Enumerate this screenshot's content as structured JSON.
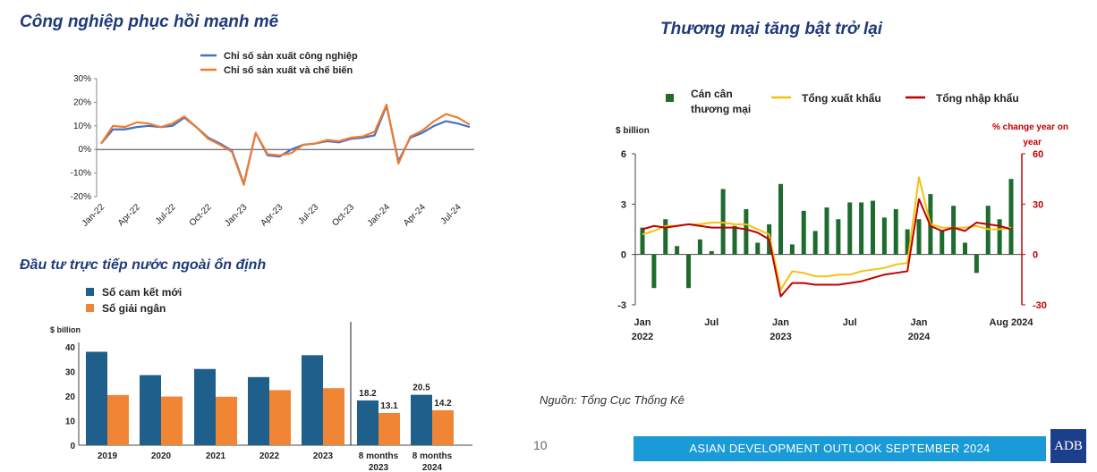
{
  "titles": {
    "industry": "Công nghiệp phục hồi mạnh mẽ",
    "fdi": "Đầu tư trực tiếp nước ngoài ổn định",
    "trade": "Thương mại tăng bật trở lại"
  },
  "footer": {
    "source": "Nguồn: Tổng Cục Thống Kê",
    "page_number": "10",
    "banner": "ASIAN DEVELOPMENT OUTLOOK SEPTEMBER 2024",
    "logo": "ADB"
  },
  "colors": {
    "blue_line": "#4472c4",
    "orange_line": "#ed7d31",
    "fdi_blue": "#1f5f8b",
    "fdi_orange": "#f08536",
    "trade_green": "#1e6b2e",
    "trade_yellow": "#f4c20d",
    "trade_red": "#c00000",
    "title": "#1f3a7a",
    "banner": "#1a9ad6"
  },
  "chart_data": [
    {
      "type": "line",
      "legend": [
        "Chỉ số sản xuất công nghiệp",
        "Chỉ số sản xuất và chế biến"
      ],
      "x_tick_labels": [
        "Jan-22",
        "Apr-22",
        "Jul-22",
        "Oct-22",
        "Jan-23",
        "Apr-23",
        "Jul-23",
        "Oct-23",
        "Jan-24",
        "Apr-24",
        "Jul-24"
      ],
      "y_tick_labels": [
        "30%",
        "20%",
        "10%",
        "0%",
        "-10%",
        "-20%"
      ],
      "ylim": [
        -20,
        30
      ],
      "series": [
        {
          "name": "Chỉ số sản xuất công nghiệp",
          "values": [
            2.5,
            8.5,
            8.5,
            9.5,
            10,
            9.5,
            10,
            13.5,
            9.5,
            5,
            2.5,
            -0.5,
            -14.5,
            7,
            -2.5,
            -3,
            0,
            2,
            2.5,
            3.5,
            3,
            4.5,
            5,
            6,
            18.5,
            -5,
            5,
            7,
            10,
            12,
            11,
            9.5
          ]
        },
        {
          "name": "Chỉ số sản xuất và chế biến",
          "values": [
            2.5,
            10,
            9.5,
            11.5,
            11,
            9.5,
            11,
            14,
            9.5,
            4.5,
            2,
            -1,
            -15,
            7,
            -2,
            -2.5,
            -1.5,
            2,
            2.5,
            4,
            3.5,
            5,
            5.5,
            7.5,
            19,
            -6,
            5.5,
            8,
            12,
            15,
            13.5,
            10.5
          ]
        }
      ]
    },
    {
      "type": "bar",
      "legend": [
        "Số cam kết mới",
        "Số giải ngân"
      ],
      "unit": "$ billion",
      "y_tick_labels": [
        "0",
        "10",
        "20",
        "30",
        "40"
      ],
      "ylim": [
        0,
        40
      ],
      "categories": [
        [
          "2019"
        ],
        [
          "2020"
        ],
        [
          "2021"
        ],
        [
          "2022"
        ],
        [
          "2023"
        ],
        [
          "8 months",
          "2023"
        ],
        [
          "8 months",
          "2024"
        ]
      ],
      "series": [
        {
          "name": "Số cam kết mới",
          "values": [
            38,
            28.5,
            31,
            27.7,
            36.6,
            18.2,
            20.5
          ],
          "labels": [
            "",
            "",
            "",
            "",
            "",
            "18.2",
            "20.5"
          ]
        },
        {
          "name": "Số giải ngân",
          "values": [
            20.4,
            19.8,
            19.7,
            22.4,
            23.2,
            13.1,
            14.2
          ],
          "labels": [
            "",
            "",
            "",
            "",
            "",
            "13.1",
            "14.2"
          ]
        }
      ]
    },
    {
      "type": "bar",
      "legend": [
        "Cán cân thương mại",
        "Tổng xuất khẩu",
        "Tổng nhập khẩu"
      ],
      "left_unit": "$ billion",
      "right_unit": "% change year on year",
      "left_tick_labels": [
        "6",
        "3",
        "0",
        "-3"
      ],
      "right_tick_labels": [
        "60",
        "30",
        "0",
        "-30"
      ],
      "ylim_left": [
        -3,
        6
      ],
      "ylim_right": [
        -30,
        60
      ],
      "x_tick_labels": [
        [
          "Jan",
          "2022"
        ],
        [
          "Jul",
          ""
        ],
        [
          "Jan",
          "2023"
        ],
        [
          "Jul",
          ""
        ],
        [
          "Jan",
          "2024"
        ],
        [
          "Aug 2024",
          ""
        ]
      ],
      "series": [
        {
          "name": "Cán cân thương mại",
          "values": [
            1.6,
            -2,
            2.1,
            0.5,
            -2,
            0.9,
            0.2,
            3.9,
            1.7,
            2.7,
            0.7,
            1.8,
            4.2,
            0.6,
            2.6,
            1.4,
            2.8,
            2.1,
            3.1,
            3.1,
            3.2,
            2.2,
            2.7,
            1.5,
            2.1,
            3.6,
            1.4,
            2.9,
            0.7,
            -1.1,
            2.9,
            2.1,
            4.5
          ]
        },
        {
          "name": "Tổng xuất khẩu",
          "values": [
            12,
            14,
            17,
            17,
            18,
            18,
            19,
            19,
            18,
            18,
            15,
            12,
            -21,
            -10,
            -11,
            -13,
            -13,
            -12,
            -12,
            -10,
            -9,
            -8,
            -6,
            -5,
            46,
            18,
            16,
            16,
            16,
            17,
            15,
            15,
            16
          ]
        },
        {
          "name": "Tổng nhập khẩu",
          "values": [
            15,
            17,
            16,
            17,
            18,
            17,
            16,
            16,
            16,
            15,
            13,
            9,
            -25,
            -17,
            -17,
            -18,
            -18,
            -18,
            -17,
            -16,
            -14,
            -12,
            -11,
            -10,
            33,
            17,
            14,
            16,
            14,
            19,
            18,
            17,
            15
          ]
        }
      ]
    }
  ]
}
